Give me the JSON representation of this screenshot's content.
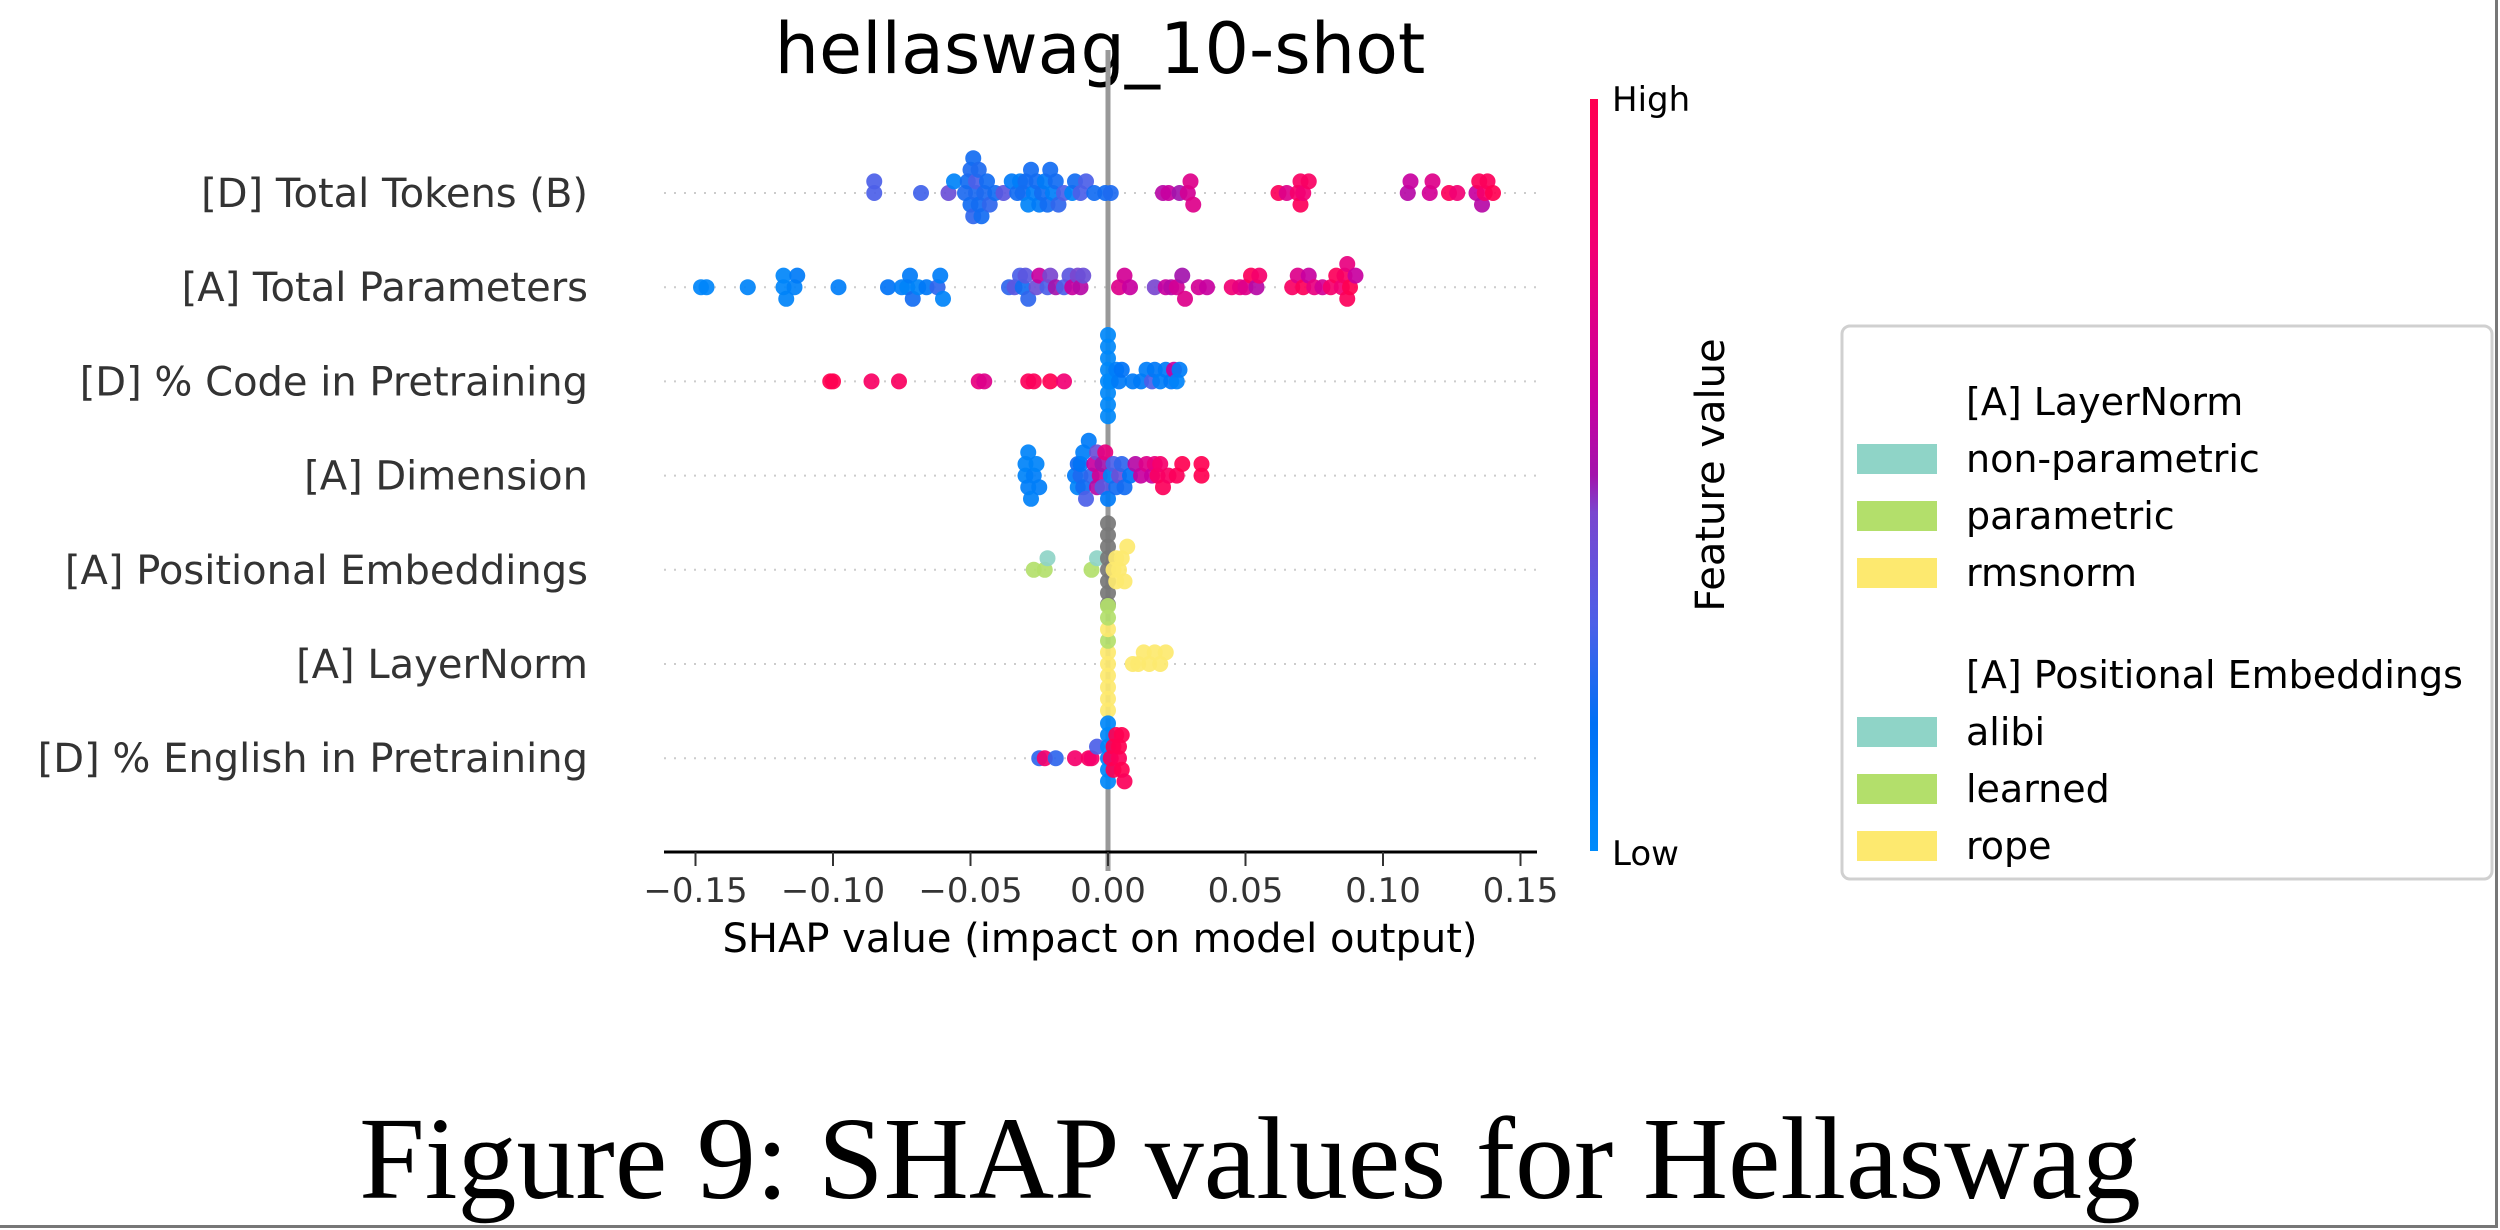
{
  "caption": "Figure 9: SHAP values for Hellaswag",
  "chart_data": {
    "type": "scatter",
    "subtype": "shap-beeswarm",
    "title": "hellaswag_10-shot",
    "xlabel": "SHAP value (impact on model output)",
    "ylabel": "",
    "xlim": [
      -0.16,
      0.155
    ],
    "xticks": [
      -0.15,
      -0.1,
      -0.05,
      0.0,
      0.05,
      0.1,
      0.15
    ],
    "xtick_labels": [
      "−0.15",
      "−0.10",
      "−0.05",
      "0.00",
      "0.05",
      "0.10",
      "0.15"
    ],
    "grid": false,
    "zero_line": true,
    "colorbar": {
      "label": "Feature value",
      "high_label": "High",
      "low_label": "Low",
      "low_color": "#008bfb",
      "mid_color": "#8c2db5",
      "high_color": "#ff0051"
    },
    "missing_color": "#777777",
    "legend": {
      "placement": "right",
      "groups": [
        {
          "title": "[A] LayerNorm",
          "items": [
            {
              "label": "non-parametric",
              "color": "#8fd4c7"
            },
            {
              "label": "parametric",
              "color": "#b3df6b"
            },
            {
              "label": "rmsnorm",
              "color": "#fde96f"
            }
          ]
        },
        {
          "title": "[A] Positional Embeddings",
          "items": [
            {
              "label": "alibi",
              "color": "#8fd4c7"
            },
            {
              "label": "learned",
              "color": "#b3df6b"
            },
            {
              "label": "rope",
              "color": "#fde96f"
            }
          ]
        }
      ]
    },
    "features": [
      {
        "name": "[D] Total Tokens (B)",
        "kind": "numeric",
        "points": [
          [
            -0.085,
            0.3
          ],
          [
            -0.085,
            0.3
          ],
          [
            -0.068,
            0.28
          ],
          [
            -0.058,
            0.4
          ],
          [
            -0.056,
            0.05
          ],
          [
            -0.052,
            0.22
          ],
          [
            -0.051,
            0.2
          ],
          [
            -0.05,
            0.2
          ],
          [
            -0.05,
            0.22
          ],
          [
            -0.049,
            0.25
          ],
          [
            -0.049,
            0.2
          ],
          [
            -0.048,
            0.22
          ],
          [
            -0.048,
            0.3
          ],
          [
            -0.047,
            0.2
          ],
          [
            -0.047,
            0.22
          ],
          [
            -0.046,
            0.2
          ],
          [
            -0.045,
            0.22
          ],
          [
            -0.044,
            0.2
          ],
          [
            -0.043,
            0.25
          ],
          [
            -0.041,
            0.2
          ],
          [
            -0.038,
            0.35
          ],
          [
            -0.035,
            0.1
          ],
          [
            -0.033,
            0.2
          ],
          [
            -0.032,
            0.08
          ],
          [
            -0.031,
            0.2
          ],
          [
            -0.03,
            0.2
          ],
          [
            -0.029,
            0.05
          ],
          [
            -0.028,
            0.2
          ],
          [
            -0.027,
            0.08
          ],
          [
            -0.026,
            0.2
          ],
          [
            -0.025,
            0.1
          ],
          [
            -0.024,
            0.2
          ],
          [
            -0.023,
            0.1
          ],
          [
            -0.022,
            0.2
          ],
          [
            -0.021,
            0.2
          ],
          [
            -0.02,
            0.08
          ],
          [
            -0.019,
            0.2
          ],
          [
            -0.018,
            0.25
          ],
          [
            -0.016,
            0.3
          ],
          [
            -0.013,
            0.05
          ],
          [
            -0.012,
            0.2
          ],
          [
            -0.01,
            0.3
          ],
          [
            -0.008,
            0.3
          ],
          [
            -0.005,
            0.2
          ],
          [
            -0.001,
            0.2
          ],
          [
            0.001,
            0.22
          ],
          [
            0.02,
            0.55
          ],
          [
            0.022,
            0.6
          ],
          [
            0.026,
            0.5
          ],
          [
            0.029,
            0.65
          ],
          [
            0.03,
            0.7
          ],
          [
            0.031,
            0.7
          ],
          [
            0.062,
            0.95
          ],
          [
            0.065,
            0.7
          ],
          [
            0.069,
            0.85
          ],
          [
            0.07,
            0.9
          ],
          [
            0.07,
            0.95
          ],
          [
            0.071,
            0.8
          ],
          [
            0.073,
            0.9
          ],
          [
            0.109,
            0.55
          ],
          [
            0.11,
            0.6
          ],
          [
            0.117,
            0.65
          ],
          [
            0.118,
            0.7
          ],
          [
            0.124,
            0.95
          ],
          [
            0.127,
            0.8
          ],
          [
            0.134,
            0.6
          ],
          [
            0.135,
            0.95
          ],
          [
            0.136,
            0.55
          ],
          [
            0.137,
            0.85
          ],
          [
            0.138,
            0.95
          ],
          [
            0.14,
            1.0
          ]
        ]
      },
      {
        "name": "[A] Total Parameters",
        "kind": "numeric",
        "points": [
          [
            -0.148,
            0.03
          ],
          [
            -0.146,
            0.03
          ],
          [
            -0.131,
            0.05
          ],
          [
            -0.118,
            0.04
          ],
          [
            -0.118,
            0.04
          ],
          [
            -0.117,
            0.05
          ],
          [
            -0.114,
            0.06
          ],
          [
            -0.113,
            0.1
          ],
          [
            -0.098,
            0.08
          ],
          [
            -0.08,
            0.15
          ],
          [
            -0.075,
            0.08
          ],
          [
            -0.073,
            0.05
          ],
          [
            -0.072,
            0.1
          ],
          [
            -0.071,
            0.2
          ],
          [
            -0.069,
            0.05
          ],
          [
            -0.066,
            0.12
          ],
          [
            -0.062,
            0.25
          ],
          [
            -0.061,
            0.08
          ],
          [
            -0.06,
            0.05
          ],
          [
            -0.036,
            0.25
          ],
          [
            -0.034,
            0.35
          ],
          [
            -0.032,
            0.3
          ],
          [
            -0.031,
            0.2
          ],
          [
            -0.03,
            0.35
          ],
          [
            -0.029,
            0.25
          ],
          [
            -0.026,
            0.4
          ],
          [
            -0.025,
            0.6
          ],
          [
            -0.022,
            0.3
          ],
          [
            -0.021,
            0.45
          ],
          [
            -0.019,
            0.5
          ],
          [
            -0.016,
            0.3
          ],
          [
            -0.014,
            0.35
          ],
          [
            -0.013,
            0.6
          ],
          [
            -0.011,
            0.45
          ],
          [
            -0.01,
            0.55
          ],
          [
            -0.009,
            0.4
          ],
          [
            0.004,
            0.7
          ],
          [
            0.006,
            0.65
          ],
          [
            0.008,
            0.6
          ],
          [
            0.017,
            0.45
          ],
          [
            0.021,
            0.6
          ],
          [
            0.023,
            0.55
          ],
          [
            0.025,
            0.65
          ],
          [
            0.027,
            0.5
          ],
          [
            0.028,
            0.7
          ],
          [
            0.033,
            0.65
          ],
          [
            0.036,
            0.6
          ],
          [
            0.045,
            0.8
          ],
          [
            0.048,
            0.75
          ],
          [
            0.05,
            0.7
          ],
          [
            0.052,
            0.95
          ],
          [
            0.054,
            0.55
          ],
          [
            0.055,
            0.85
          ],
          [
            0.067,
            0.9
          ],
          [
            0.069,
            0.7
          ],
          [
            0.071,
            0.95
          ],
          [
            0.073,
            0.6
          ],
          [
            0.075,
            0.75
          ],
          [
            0.078,
            0.65
          ],
          [
            0.081,
            0.85
          ],
          [
            0.083,
            0.95
          ],
          [
            0.085,
            0.8
          ],
          [
            0.086,
            0.9
          ],
          [
            0.087,
            0.95
          ],
          [
            0.087,
            0.75
          ],
          [
            0.088,
            1.0
          ],
          [
            0.09,
            0.6
          ]
        ]
      },
      {
        "name": "[D] % Code in Pretraining",
        "kind": "numeric",
        "points": [
          [
            -0.101,
            1.0
          ],
          [
            -0.1,
            1.0
          ],
          [
            -0.086,
            0.9
          ],
          [
            -0.076,
            0.92
          ],
          [
            -0.047,
            0.75
          ],
          [
            -0.045,
            0.7
          ],
          [
            -0.029,
            0.95
          ],
          [
            -0.027,
            0.95
          ],
          [
            -0.021,
            1.0
          ],
          [
            -0.016,
            0.8
          ],
          [
            0.0,
            0.02
          ],
          [
            0.0,
            0.02
          ],
          [
            0.0,
            0.02
          ],
          [
            0.0,
            0.02
          ],
          [
            0.0,
            0.02
          ],
          [
            0.0,
            0.02
          ],
          [
            0.0,
            0.02
          ],
          [
            0.0,
            0.02
          ],
          [
            0.001,
            0.02
          ],
          [
            0.003,
            0.08
          ],
          [
            0.004,
            0.1
          ],
          [
            0.005,
            0.15
          ],
          [
            0.009,
            0.1
          ],
          [
            0.012,
            0.1
          ],
          [
            0.014,
            0.08
          ],
          [
            0.016,
            0.3
          ],
          [
            0.017,
            0.12
          ],
          [
            0.019,
            0.08
          ],
          [
            0.021,
            0.1
          ],
          [
            0.023,
            0.12
          ],
          [
            0.024,
            0.6
          ],
          [
            0.025,
            0.05
          ],
          [
            0.026,
            0.08
          ]
        ]
      },
      {
        "name": "[A] Dimension",
        "kind": "numeric",
        "points": [
          [
            -0.03,
            0.05
          ],
          [
            -0.03,
            0.05
          ],
          [
            -0.029,
            0.08
          ],
          [
            -0.029,
            0.05
          ],
          [
            -0.028,
            0.06
          ],
          [
            -0.027,
            0.08
          ],
          [
            -0.026,
            0.05
          ],
          [
            -0.025,
            0.08
          ],
          [
            -0.012,
            0.1
          ],
          [
            -0.011,
            0.2
          ],
          [
            -0.011,
            0.05
          ],
          [
            -0.01,
            0.22
          ],
          [
            -0.01,
            0.15
          ],
          [
            -0.009,
            0.2
          ],
          [
            -0.009,
            0.08
          ],
          [
            -0.008,
            0.3
          ],
          [
            -0.007,
            0.1
          ],
          [
            -0.006,
            0.25
          ],
          [
            -0.005,
            0.6
          ],
          [
            -0.004,
            0.55
          ],
          [
            -0.004,
            0.4
          ],
          [
            -0.003,
            0.65
          ],
          [
            -0.002,
            0.5
          ],
          [
            -0.002,
            0.35
          ],
          [
            -0.001,
            0.75
          ],
          [
            0.0,
            0.1
          ],
          [
            0.001,
            0.05
          ],
          [
            0.002,
            0.3
          ],
          [
            0.003,
            0.2
          ],
          [
            0.004,
            0.4
          ],
          [
            0.005,
            0.25
          ],
          [
            0.006,
            0.2
          ],
          [
            0.008,
            0.15
          ],
          [
            0.01,
            0.55
          ],
          [
            0.012,
            0.6
          ],
          [
            0.014,
            0.7
          ],
          [
            0.016,
            0.6
          ],
          [
            0.017,
            0.75
          ],
          [
            0.018,
            0.9
          ],
          [
            0.019,
            0.85
          ],
          [
            0.02,
            0.95
          ],
          [
            0.022,
            0.9
          ],
          [
            0.025,
            0.95
          ],
          [
            0.027,
            1.0
          ],
          [
            0.034,
            1.0
          ],
          [
            0.034,
            1.0
          ]
        ]
      },
      {
        "name": "[A] Positional Embeddings",
        "kind": "categorical",
        "points": [
          [
            -0.027,
            "learned"
          ],
          [
            -0.023,
            "learned"
          ],
          [
            -0.022,
            "alibi"
          ],
          [
            -0.006,
            "learned"
          ],
          [
            -0.004,
            "alibi"
          ],
          [
            0.0,
            "missing"
          ],
          [
            0.0,
            "missing"
          ],
          [
            0.0,
            "missing"
          ],
          [
            0.0,
            "missing"
          ],
          [
            0.0,
            "missing"
          ],
          [
            0.0,
            "missing"
          ],
          [
            0.0,
            "missing"
          ],
          [
            0.0,
            "missing"
          ],
          [
            0.002,
            "rope"
          ],
          [
            0.003,
            "rope"
          ],
          [
            0.003,
            "rope"
          ],
          [
            0.004,
            "rope"
          ],
          [
            0.005,
            "rope"
          ],
          [
            0.006,
            "rope"
          ],
          [
            0.007,
            "rope"
          ]
        ]
      },
      {
        "name": "[A] LayerNorm",
        "kind": "categorical",
        "points": [
          [
            0.0,
            "rmsnorm"
          ],
          [
            0.0,
            "rmsnorm"
          ],
          [
            0.0,
            "rmsnorm"
          ],
          [
            0.0,
            "parametric"
          ],
          [
            0.0,
            "rmsnorm"
          ],
          [
            0.0,
            "rmsnorm"
          ],
          [
            0.0,
            "rmsnorm"
          ],
          [
            0.0,
            "parametric"
          ],
          [
            0.0,
            "rmsnorm"
          ],
          [
            0.0,
            "parametric"
          ],
          [
            0.009,
            "rmsnorm"
          ],
          [
            0.011,
            "rmsnorm"
          ],
          [
            0.013,
            "rmsnorm"
          ],
          [
            0.015,
            "rmsnorm"
          ],
          [
            0.017,
            "rmsnorm"
          ],
          [
            0.019,
            "rmsnorm"
          ],
          [
            0.021,
            "rmsnorm"
          ]
        ]
      },
      {
        "name": "[D] % English in Pretraining",
        "kind": "numeric",
        "points": [
          [
            -0.025,
            0.25
          ],
          [
            -0.023,
            0.85
          ],
          [
            -0.019,
            0.25
          ],
          [
            -0.012,
            0.85
          ],
          [
            -0.007,
            0.9
          ],
          [
            -0.006,
            0.85
          ],
          [
            -0.004,
            0.3
          ],
          [
            0.0,
            0.02
          ],
          [
            0.0,
            0.02
          ],
          [
            0.0,
            0.02
          ],
          [
            0.0,
            0.02
          ],
          [
            0.0,
            0.02
          ],
          [
            0.0,
            0.02
          ],
          [
            0.001,
            0.95
          ],
          [
            0.002,
            1.0
          ],
          [
            0.002,
            1.0
          ],
          [
            0.003,
            1.0
          ],
          [
            0.004,
            0.95
          ],
          [
            0.004,
            1.0
          ],
          [
            0.005,
            1.0
          ],
          [
            0.005,
            1.0
          ],
          [
            0.006,
            0.95
          ]
        ]
      }
    ],
    "category_colors": {
      "non-parametric": "#8fd4c7",
      "alibi": "#8fd4c7",
      "parametric": "#b3df6b",
      "learned": "#b3df6b",
      "rmsnorm": "#fde96f",
      "rope": "#fde96f",
      "missing": "#777777"
    }
  }
}
